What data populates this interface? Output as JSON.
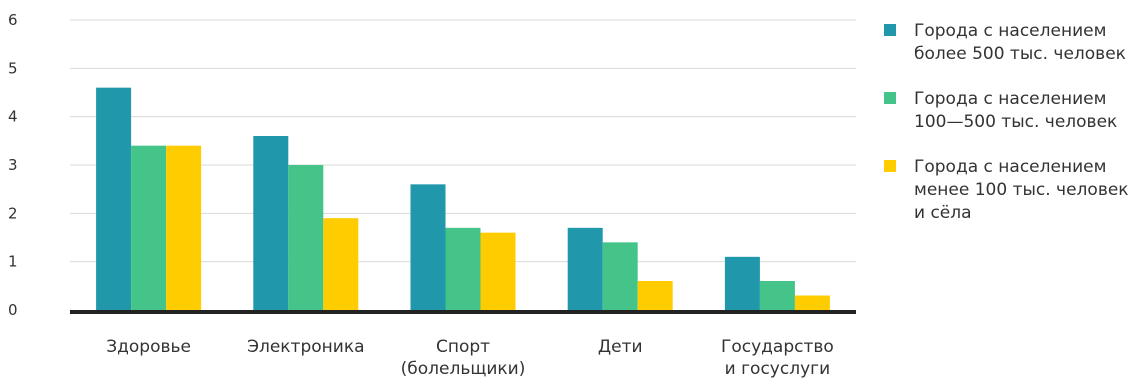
{
  "chart_data": {
    "type": "bar",
    "categories": [
      [
        "Здоровье"
      ],
      [
        "Электроника"
      ],
      [
        "Спорт",
        "(болельщики)"
      ],
      [
        "Дети"
      ],
      [
        "Государство",
        "и госуслуги"
      ]
    ],
    "series": [
      {
        "name": "Города с населением\nболее 500 тыс. человек",
        "color": "#2097ab",
        "values": [
          4.6,
          3.6,
          2.6,
          1.7,
          1.1
        ]
      },
      {
        "name": "Города с населением\n100—500 тыс. человек",
        "color": "#44c489",
        "values": [
          3.4,
          3.0,
          1.7,
          1.4,
          0.6
        ]
      },
      {
        "name": "Города с населением\nменее 100 тыс. человек\nи сёла",
        "color": "#ffcc00",
        "values": [
          3.4,
          1.9,
          1.6,
          0.6,
          0.3
        ]
      }
    ],
    "yticks": [
      0,
      1,
      2,
      3,
      4,
      5,
      6
    ],
    "ylim": [
      0,
      6
    ],
    "grid": true,
    "legend_position": "right",
    "title": "",
    "xlabel": "",
    "ylabel": ""
  }
}
